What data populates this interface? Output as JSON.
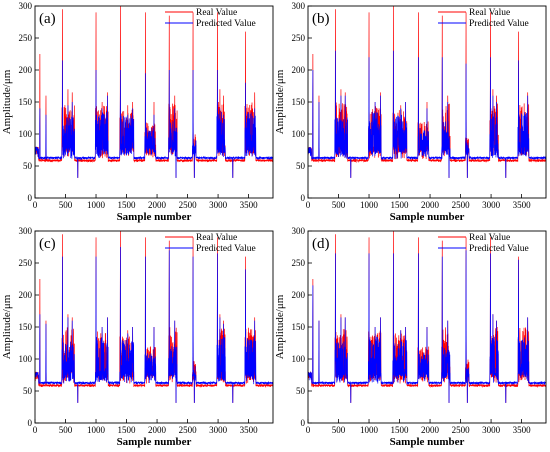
{
  "chart_data": [
    {
      "type": "line",
      "panel_label": "(a)",
      "xlabel": "Sample number",
      "ylabel": "Amplitude/μm",
      "xlim": [
        0,
        3900
      ],
      "ylim": [
        0,
        300
      ],
      "xticks": [
        0,
        500,
        1000,
        1500,
        2000,
        2500,
        3000,
        3500
      ],
      "yticks": [
        0,
        50,
        100,
        150,
        200,
        250,
        300
      ],
      "legend_position": "top-right",
      "series": [
        {
          "name": "Real Value",
          "color": "#ff0000"
        },
        {
          "name": "Predicted Value",
          "color": "#0000ff"
        }
      ],
      "spikes": [
        {
          "x": 80,
          "real": 225,
          "pred": 140
        },
        {
          "x": 180,
          "real": 160,
          "pred": 130
        },
        {
          "x": 450,
          "real": 295,
          "pred": 215
        },
        {
          "x": 540,
          "real": 170,
          "pred": 145
        },
        {
          "x": 610,
          "real": 165,
          "pred": 150
        },
        {
          "x": 1000,
          "real": 290,
          "pred": 200
        },
        {
          "x": 1100,
          "real": 150,
          "pred": 140
        },
        {
          "x": 1190,
          "real": 165,
          "pred": 160
        },
        {
          "x": 1400,
          "real": 300,
          "pred": 200
        },
        {
          "x": 1520,
          "real": 145,
          "pred": 130
        },
        {
          "x": 1600,
          "real": 150,
          "pred": 140
        },
        {
          "x": 1810,
          "real": 290,
          "pred": 195
        },
        {
          "x": 1950,
          "real": 150,
          "pred": 130
        },
        {
          "x": 2200,
          "real": 285,
          "pred": 200
        },
        {
          "x": 2290,
          "real": 160,
          "pred": 140
        },
        {
          "x": 2590,
          "real": 290,
          "pred": 200
        },
        {
          "x": 2990,
          "real": 290,
          "pred": 200
        },
        {
          "x": 3030,
          "real": 170,
          "pred": 140
        },
        {
          "x": 3090,
          "real": 160,
          "pred": 130
        },
        {
          "x": 3450,
          "real": 260,
          "pred": 180
        },
        {
          "x": 3600,
          "real": 165,
          "pred": 140
        }
      ],
      "dips": [
        700,
        1190,
        2310,
        2610,
        3240
      ]
    },
    {
      "type": "line",
      "panel_label": "(b)",
      "xlabel": "Sample number",
      "ylabel": "Amplitude/μm",
      "xlim": [
        0,
        3900
      ],
      "ylim": [
        0,
        300
      ],
      "xticks": [
        0,
        500,
        1000,
        1500,
        2000,
        2500,
        3000,
        3500
      ],
      "yticks": [
        0,
        50,
        100,
        150,
        200,
        250,
        300
      ],
      "legend_position": "top-right",
      "series": [
        {
          "name": "Real Value",
          "color": "#ff0000"
        },
        {
          "name": "Predicted Value",
          "color": "#0000ff"
        }
      ],
      "spikes": [
        {
          "x": 80,
          "real": 225,
          "pred": 200
        },
        {
          "x": 180,
          "real": 160,
          "pred": 150
        },
        {
          "x": 450,
          "real": 295,
          "pred": 230
        },
        {
          "x": 540,
          "real": 170,
          "pred": 160
        },
        {
          "x": 610,
          "real": 165,
          "pred": 160
        },
        {
          "x": 1000,
          "real": 290,
          "pred": 220
        },
        {
          "x": 1100,
          "real": 150,
          "pred": 150
        },
        {
          "x": 1190,
          "real": 165,
          "pred": 160
        },
        {
          "x": 1400,
          "real": 300,
          "pred": 230
        },
        {
          "x": 1520,
          "real": 145,
          "pred": 140
        },
        {
          "x": 1600,
          "real": 150,
          "pred": 150
        },
        {
          "x": 1810,
          "real": 290,
          "pred": 220
        },
        {
          "x": 1950,
          "real": 150,
          "pred": 140
        },
        {
          "x": 2200,
          "real": 285,
          "pred": 220
        },
        {
          "x": 2290,
          "real": 160,
          "pred": 150
        },
        {
          "x": 2590,
          "real": 290,
          "pred": 210
        },
        {
          "x": 2990,
          "real": 290,
          "pred": 220
        },
        {
          "x": 3030,
          "real": 170,
          "pred": 160
        },
        {
          "x": 3090,
          "real": 160,
          "pred": 150
        },
        {
          "x": 3450,
          "real": 260,
          "pred": 215
        },
        {
          "x": 3600,
          "real": 165,
          "pred": 160
        }
      ],
      "dips": [
        700,
        1190,
        2310,
        2610,
        3240
      ]
    },
    {
      "type": "line",
      "panel_label": "(c)",
      "xlabel": "Sample number",
      "ylabel": "Amplitude/μm",
      "xlim": [
        0,
        3900
      ],
      "ylim": [
        0,
        300
      ],
      "xticks": [
        0,
        500,
        1000,
        1500,
        2000,
        2500,
        3000,
        3500
      ],
      "yticks": [
        0,
        50,
        100,
        150,
        200,
        250,
        300
      ],
      "legend_position": "top-right",
      "series": [
        {
          "name": "Real Value",
          "color": "#ff0000"
        },
        {
          "name": "Predicted Value",
          "color": "#0000ff"
        }
      ],
      "spikes": [
        {
          "x": 80,
          "real": 225,
          "pred": 170
        },
        {
          "x": 180,
          "real": 160,
          "pred": 155
        },
        {
          "x": 450,
          "real": 295,
          "pred": 260
        },
        {
          "x": 540,
          "real": 170,
          "pred": 165
        },
        {
          "x": 610,
          "real": 165,
          "pred": 160
        },
        {
          "x": 1000,
          "real": 290,
          "pred": 260
        },
        {
          "x": 1100,
          "real": 150,
          "pred": 150
        },
        {
          "x": 1190,
          "real": 165,
          "pred": 165
        },
        {
          "x": 1400,
          "real": 300,
          "pred": 275
        },
        {
          "x": 1520,
          "real": 145,
          "pred": 140
        },
        {
          "x": 1600,
          "real": 150,
          "pred": 150
        },
        {
          "x": 1810,
          "real": 290,
          "pred": 260
        },
        {
          "x": 1950,
          "real": 150,
          "pred": 150
        },
        {
          "x": 2200,
          "real": 285,
          "pred": 270
        },
        {
          "x": 2290,
          "real": 160,
          "pred": 160
        },
        {
          "x": 2590,
          "real": 290,
          "pred": 260
        },
        {
          "x": 2990,
          "real": 290,
          "pred": 265
        },
        {
          "x": 3030,
          "real": 170,
          "pred": 165
        },
        {
          "x": 3090,
          "real": 160,
          "pred": 155
        },
        {
          "x": 3450,
          "real": 260,
          "pred": 240
        },
        {
          "x": 3600,
          "real": 165,
          "pred": 160
        }
      ],
      "dips": [
        700,
        1190,
        2310,
        2610,
        3240
      ]
    },
    {
      "type": "line",
      "panel_label": "(d)",
      "xlabel": "Sample number",
      "ylabel": "Amplitude/μm",
      "xlim": [
        0,
        3900
      ],
      "ylim": [
        0,
        300
      ],
      "xticks": [
        0,
        500,
        1000,
        1500,
        2000,
        2500,
        3000,
        3500
      ],
      "yticks": [
        0,
        50,
        100,
        150,
        200,
        250,
        300
      ],
      "legend_position": "top-right",
      "series": [
        {
          "name": "Real Value",
          "color": "#ff0000"
        },
        {
          "name": "Predicted Value",
          "color": "#0000ff"
        }
      ],
      "spikes": [
        {
          "x": 80,
          "real": 225,
          "pred": 215
        },
        {
          "x": 180,
          "real": 160,
          "pred": 160
        },
        {
          "x": 450,
          "real": 295,
          "pred": 265
        },
        {
          "x": 540,
          "real": 170,
          "pred": 165
        },
        {
          "x": 610,
          "real": 165,
          "pred": 165
        },
        {
          "x": 1000,
          "real": 290,
          "pred": 265
        },
        {
          "x": 1100,
          "real": 150,
          "pred": 150
        },
        {
          "x": 1190,
          "real": 165,
          "pred": 165
        },
        {
          "x": 1400,
          "real": 300,
          "pred": 265
        },
        {
          "x": 1520,
          "real": 145,
          "pred": 145
        },
        {
          "x": 1600,
          "real": 150,
          "pred": 150
        },
        {
          "x": 1810,
          "real": 290,
          "pred": 265
        },
        {
          "x": 1950,
          "real": 150,
          "pred": 150
        },
        {
          "x": 2200,
          "real": 285,
          "pred": 260
        },
        {
          "x": 2290,
          "real": 160,
          "pred": 160
        },
        {
          "x": 2590,
          "real": 290,
          "pred": 270
        },
        {
          "x": 2990,
          "real": 290,
          "pred": 265
        },
        {
          "x": 3030,
          "real": 170,
          "pred": 170
        },
        {
          "x": 3090,
          "real": 160,
          "pred": 160
        },
        {
          "x": 3450,
          "real": 260,
          "pred": 255
        },
        {
          "x": 3600,
          "real": 165,
          "pred": 165
        }
      ],
      "dips": [
        700,
        1190,
        2310,
        2610,
        3240
      ]
    }
  ]
}
